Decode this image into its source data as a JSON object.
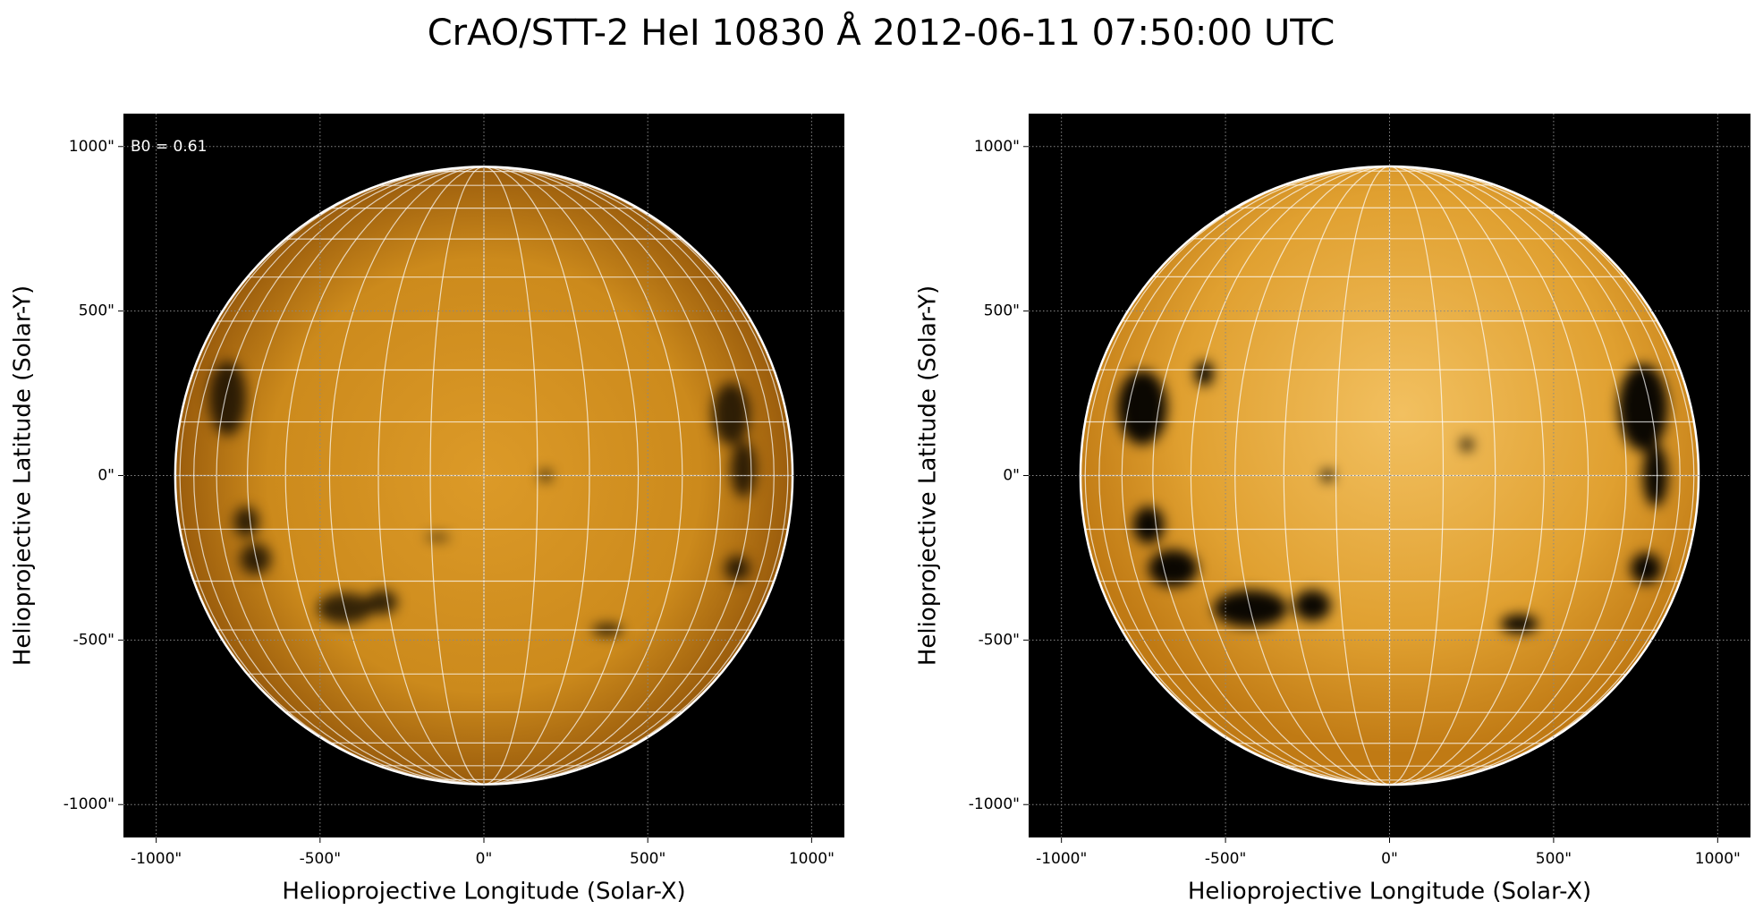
{
  "title": "CrAO/STT-2 HeI 10830 Å 2012-06-11 07:50:00 UTC",
  "chart_data": [
    {
      "type": "solar-map",
      "annotation": "B0 = 0.61",
      "xlabel": "Helioprojective Longitude (Solar-X)",
      "ylabel": "Helioprojective Latitude (Solar-Y)",
      "xlim": [
        -1100,
        1100
      ],
      "ylim": [
        -1100,
        1100
      ],
      "xticks": [
        {
          "value": -1000,
          "label": "-1000\""
        },
        {
          "value": -500,
          "label": "-500\""
        },
        {
          "value": 0,
          "label": "0\""
        },
        {
          "value": 500,
          "label": "500\""
        },
        {
          "value": 1000,
          "label": "1000\""
        }
      ],
      "yticks": [
        {
          "value": -1000,
          "label": "-1000\""
        },
        {
          "value": -500,
          "label": "-500\""
        },
        {
          "value": 0,
          "label": "0\""
        },
        {
          "value": 500,
          "label": "500\""
        },
        {
          "value": 1000,
          "label": "1000\""
        }
      ],
      "disk_radius": 942,
      "grid": true
    },
    {
      "type": "solar-map",
      "xlabel": "Helioprojective Longitude (Solar-X)",
      "ylabel": "Helioprojective Latitude (Solar-Y)",
      "xlim": [
        -1100,
        1100
      ],
      "ylim": [
        -1100,
        1100
      ],
      "xticks": [
        {
          "value": -1000,
          "label": "-1000\""
        },
        {
          "value": -500,
          "label": "-500\""
        },
        {
          "value": 0,
          "label": "0\""
        },
        {
          "value": 500,
          "label": "500\""
        },
        {
          "value": 1000,
          "label": "1000\""
        }
      ],
      "yticks": [
        {
          "value": -1000,
          "label": "-1000\""
        },
        {
          "value": -500,
          "label": "-500\""
        },
        {
          "value": 0,
          "label": "0\""
        },
        {
          "value": 500,
          "label": "500\""
        },
        {
          "value": 1000,
          "label": "1000\""
        }
      ],
      "disk_radius": 942,
      "grid": true
    }
  ]
}
